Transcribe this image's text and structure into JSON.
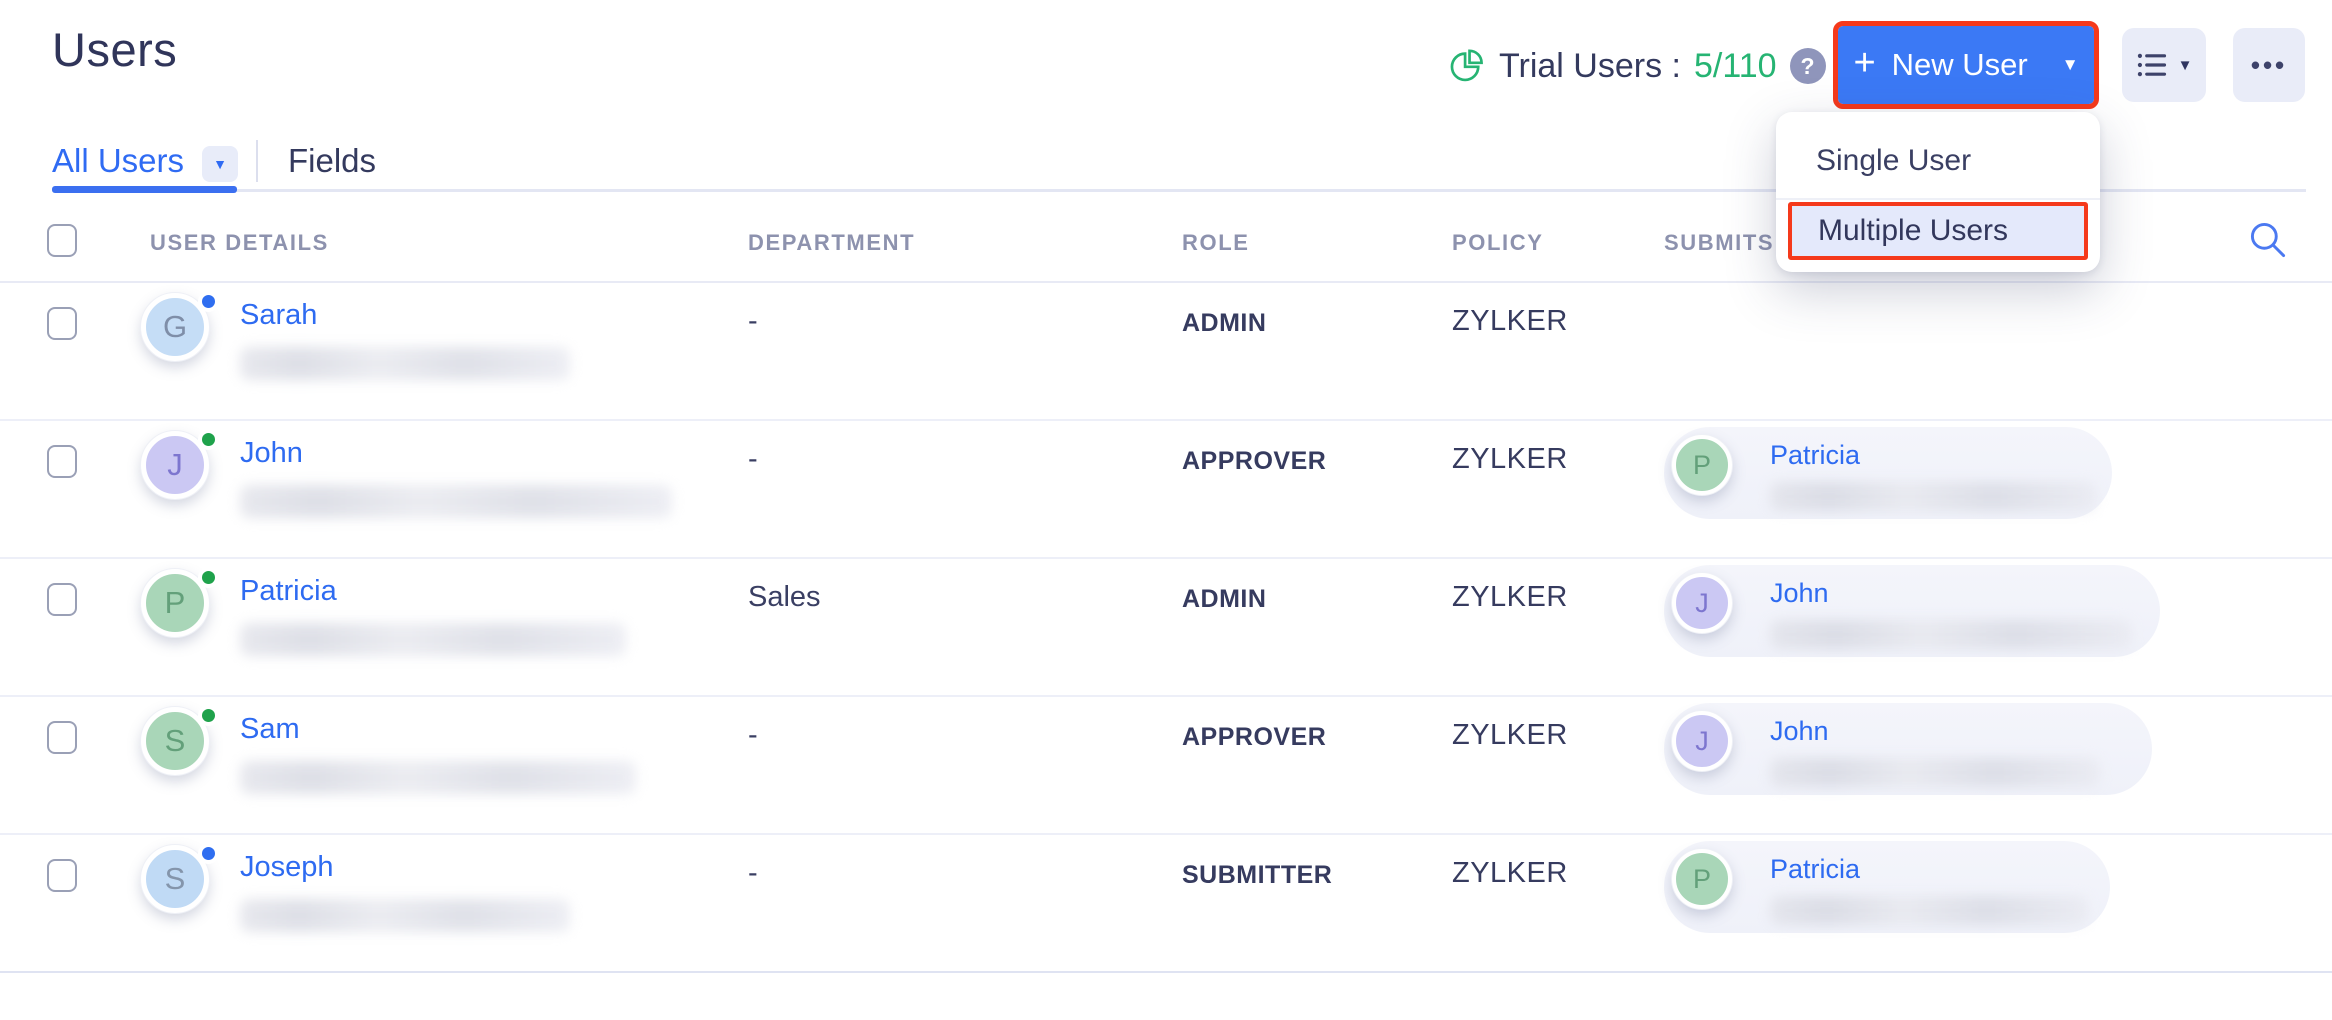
{
  "page": {
    "title": "Users"
  },
  "header": {
    "trial": {
      "label": "Trial Users :",
      "value": "5/110",
      "help_glyph": "?"
    },
    "new_user_button": {
      "label": "New User",
      "plus_glyph": "+",
      "caret_glyph": "▼"
    },
    "view_button": {
      "caret_glyph": "▼"
    },
    "more_button": {
      "glyph": "•••"
    }
  },
  "tabs": {
    "active": "All Users",
    "chevron_glyph": "▼",
    "secondary": "Fields"
  },
  "menu": {
    "items": [
      {
        "label": "Single User",
        "highlighted": false
      },
      {
        "label": "Multiple Users",
        "highlighted": true
      }
    ]
  },
  "table": {
    "columns": [
      "USER DETAILS",
      "DEPARTMENT",
      "ROLE",
      "POLICY",
      "SUBMITS TO"
    ],
    "rows": [
      {
        "name": "Sarah",
        "initial": "G",
        "department": "-",
        "role": "ADMIN",
        "policy": "ZYLKER",
        "avatar_bg": "#c5ddf6",
        "avatar_fg": "#7f8ea8",
        "status_color": "#2f6ef0",
        "email_blur_width": 330,
        "submits_to": null
      },
      {
        "name": "John",
        "initial": "J",
        "department": "-",
        "role": "APPROVER",
        "policy": "ZYLKER",
        "avatar_bg": "#cbc8f3",
        "avatar_fg": "#7d76cf",
        "status_color": "#1fa24b",
        "email_blur_width": 432,
        "submits_to": {
          "name": "Patricia",
          "initial": "P",
          "avatar_bg": "#a9d6b8",
          "avatar_fg": "#63a07a",
          "pill_width": 448,
          "blur_width": 326
        }
      },
      {
        "name": "Patricia",
        "initial": "P",
        "department": "Sales",
        "role": "ADMIN",
        "policy": "ZYLKER",
        "avatar_bg": "#a9d6b8",
        "avatar_fg": "#63a07a",
        "status_color": "#1fa24b",
        "email_blur_width": 386,
        "submits_to": {
          "name": "John",
          "initial": "J",
          "avatar_bg": "#cbc8f3",
          "avatar_fg": "#7d76cf",
          "pill_width": 496,
          "blur_width": 362
        }
      },
      {
        "name": "Sam",
        "initial": "S",
        "department": "-",
        "role": "APPROVER",
        "policy": "ZYLKER",
        "avatar_bg": "#a9d6b8",
        "avatar_fg": "#63a07a",
        "status_color": "#1fa24b",
        "email_blur_width": 396,
        "submits_to": {
          "name": "John",
          "initial": "J",
          "avatar_bg": "#cbc8f3",
          "avatar_fg": "#7d76cf",
          "pill_width": 488,
          "blur_width": 330
        }
      },
      {
        "name": "Joseph",
        "initial": "S",
        "department": "-",
        "role": "SUBMITTER",
        "policy": "ZYLKER",
        "avatar_bg": "#c0daf5",
        "avatar_fg": "#8495ab",
        "status_color": "#2f6ef0",
        "email_blur_width": 330,
        "submits_to": {
          "name": "Patricia",
          "initial": "P",
          "avatar_bg": "#a9d6b8",
          "avatar_fg": "#63a07a",
          "pill_width": 446,
          "blur_width": 318
        }
      }
    ]
  },
  "colors": {
    "accent_blue": "#3b79f5",
    "highlight_red": "#f5391b",
    "link_blue": "#2e6bf1",
    "green": "#26b473",
    "dark_text": "#343a5e",
    "muted_header": "#8d92ae"
  }
}
